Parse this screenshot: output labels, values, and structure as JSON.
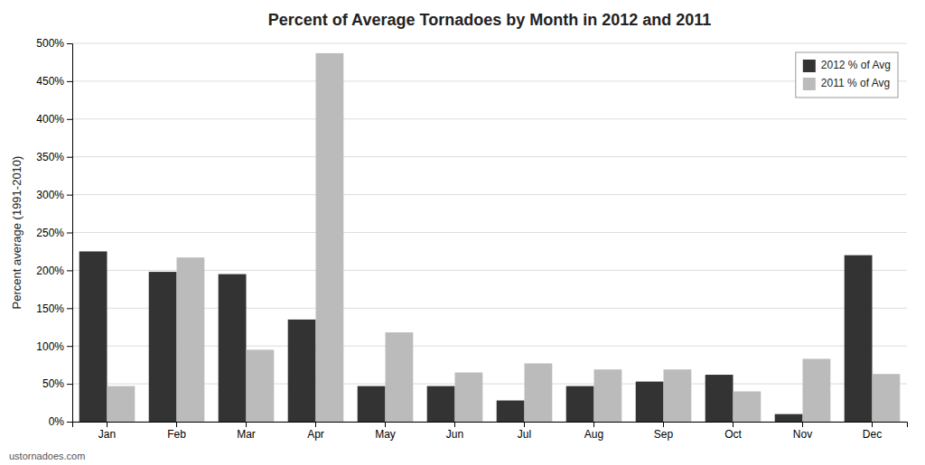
{
  "chart_data": {
    "type": "bar",
    "title": "Percent of Average Tornadoes by Month in 2012 and 2011",
    "ylabel": "Percent average (1991-2010)",
    "categories": [
      "Jan",
      "Feb",
      "Mar",
      "Apr",
      "May",
      "Jun",
      "Jul",
      "Aug",
      "Sep",
      "Oct",
      "Nov",
      "Dec"
    ],
    "series": [
      {
        "name": "2012 % of Avg",
        "color": "#333333",
        "values": [
          225,
          198,
          195,
          135,
          47,
          47,
          28,
          47,
          53,
          62,
          10,
          220
        ]
      },
      {
        "name": "2011 % of Avg",
        "color": "#bbbbbb",
        "values": [
          47,
          217,
          95,
          487,
          118,
          65,
          77,
          69,
          69,
          40,
          83,
          63
        ]
      }
    ],
    "ylim": [
      0,
      500
    ],
    "yticks": [
      {
        "value": 0,
        "label": "0%"
      },
      {
        "value": 50,
        "label": "50%"
      },
      {
        "value": 100,
        "label": "100%"
      },
      {
        "value": 150,
        "label": "150%"
      },
      {
        "value": 200,
        "label": "200%"
      },
      {
        "value": 250,
        "label": "250%"
      },
      {
        "value": 300,
        "label": "300%"
      },
      {
        "value": 350,
        "label": "350%"
      },
      {
        "value": 400,
        "label": "400%"
      },
      {
        "value": 450,
        "label": "450%"
      },
      {
        "value": 500,
        "label": "500%"
      }
    ],
    "grid": true,
    "legend": "upper right",
    "annotations": [
      "ustornadoes.com"
    ]
  }
}
